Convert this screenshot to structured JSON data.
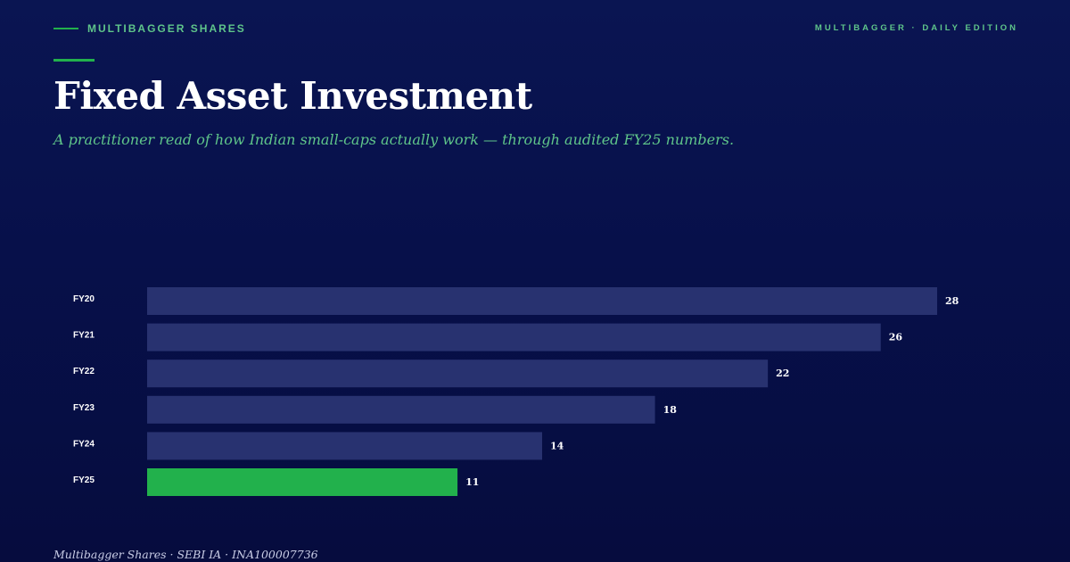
{
  "header": {
    "brand": "MULTIBAGGER SHARES",
    "edition": "MULTIBAGGER · DAILY EDITION"
  },
  "title": "Fixed Asset Investment",
  "subtitle": "A practitioner read of how Indian small-caps actually work — through audited FY25 numbers.",
  "footer": "Multibagger Shares · SEBI IA · INA100007736",
  "colors": {
    "bar": "#283270",
    "highlight": "#22b14c",
    "accent": "#5fc58a"
  },
  "chart_data": {
    "type": "bar",
    "orientation": "horizontal",
    "categories": [
      "FY20",
      "FY21",
      "FY22",
      "FY23",
      "FY24",
      "FY25"
    ],
    "values": [
      28,
      26,
      22,
      18,
      14,
      11
    ],
    "highlight": "FY25",
    "xlim": [
      0,
      28
    ],
    "grid": false,
    "legend": "none",
    "title": "",
    "xlabel": "",
    "ylabel": ""
  }
}
